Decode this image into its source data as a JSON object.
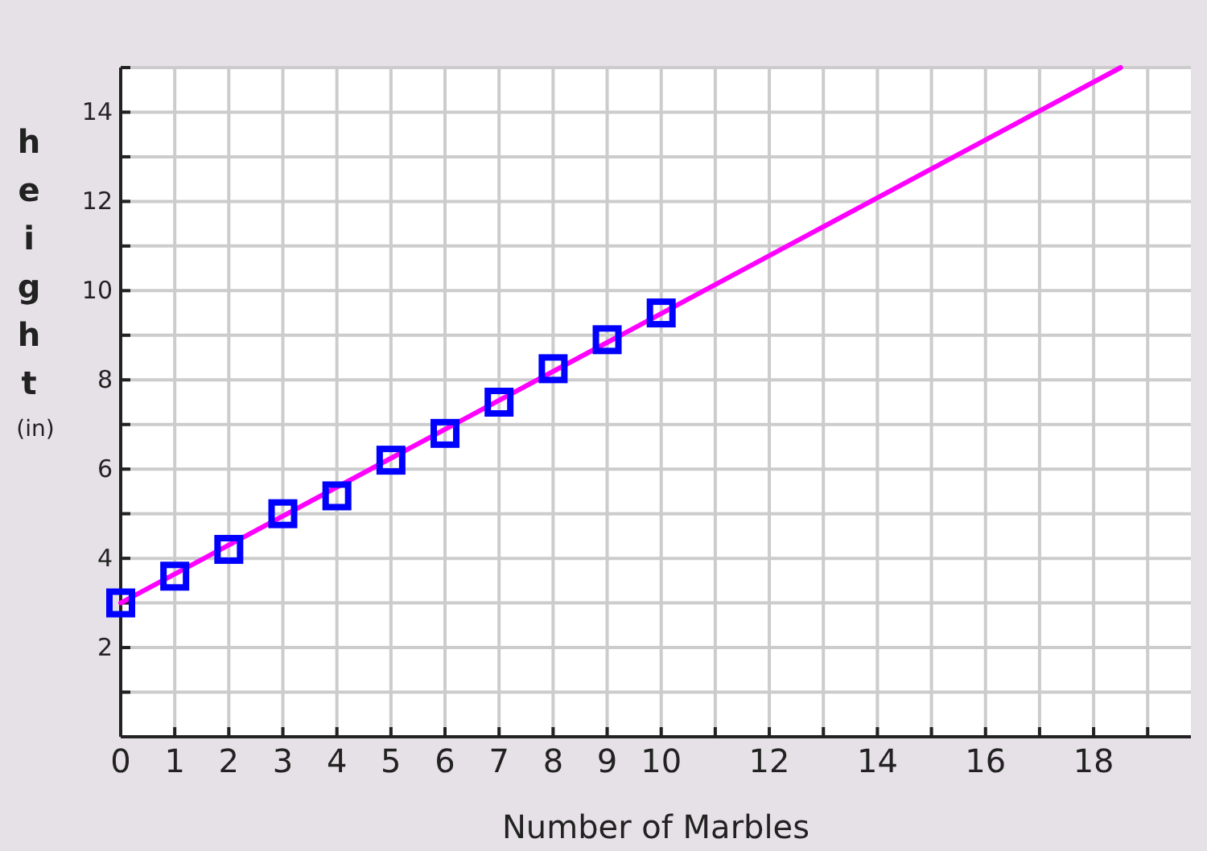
{
  "chart_data": {
    "type": "scatter",
    "xlabel": "Number of Marbles",
    "ylabel": "height (in)",
    "xlim": [
      0,
      19.8
    ],
    "ylim": [
      0,
      15
    ],
    "xticks": [
      0,
      1,
      2,
      3,
      4,
      5,
      6,
      7,
      8,
      9,
      10,
      {
        "value": 11,
        "label": null
      },
      12,
      {
        "value": 13,
        "label": null
      },
      14,
      {
        "value": 15,
        "label": null
      },
      16,
      {
        "value": 17,
        "label": null
      },
      18,
      {
        "value": 19,
        "label": null
      }
    ],
    "yticks": [
      {
        "value": 1,
        "label": null
      },
      2,
      {
        "value": 3,
        "label": null
      },
      4,
      {
        "value": 5,
        "label": null
      },
      6,
      {
        "value": 7,
        "label": null
      },
      8,
      {
        "value": 9,
        "label": null
      },
      10,
      {
        "value": 11,
        "label": null
      },
      12,
      {
        "value": 13,
        "label": null
      },
      14,
      {
        "value": 15,
        "label": null
      }
    ],
    "grid": true,
    "series": [
      {
        "type": "line",
        "color": "#ff00ff",
        "x": [
          0,
          18.5
        ],
        "values": [
          3,
          15
        ],
        "marker": "none",
        "line_style": "solid"
      },
      {
        "color": "#0000ff",
        "marker": "square",
        "x": [
          0,
          1,
          2,
          3,
          4,
          5,
          6,
          7,
          8,
          9,
          10
        ],
        "values": [
          3,
          3.6,
          4.2,
          5,
          5.4,
          6.2,
          6.8,
          7.5,
          8.25,
          8.9,
          9.5
        ]
      }
    ]
  }
}
